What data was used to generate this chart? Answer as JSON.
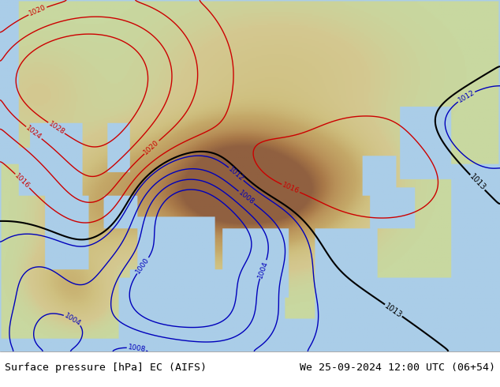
{
  "footer_left": "Surface pressure [hPa] EC (AIFS)",
  "footer_right": "We 25-09-2024 12:00 UTC (06+54)",
  "footer_fontsize": 9.5,
  "footer_color": "#000000",
  "fig_width": 6.34,
  "fig_height": 4.9,
  "dpi": 100,
  "footer_bg": "#ffffff",
  "map_bg": "#aacde8",
  "land_colors": {
    "plains": "#e8dbb0",
    "hills": "#d4c090",
    "plateau": "#c8a870",
    "high": "#b89060",
    "tibet": "#a07848"
  },
  "ocean_color": "#aacde8",
  "contour_blue": "#0000bb",
  "contour_red": "#cc0000",
  "contour_black": "#000000",
  "contour_lw": 1.0,
  "contour_black_lw": 1.5,
  "label_fontsize": 6.5
}
